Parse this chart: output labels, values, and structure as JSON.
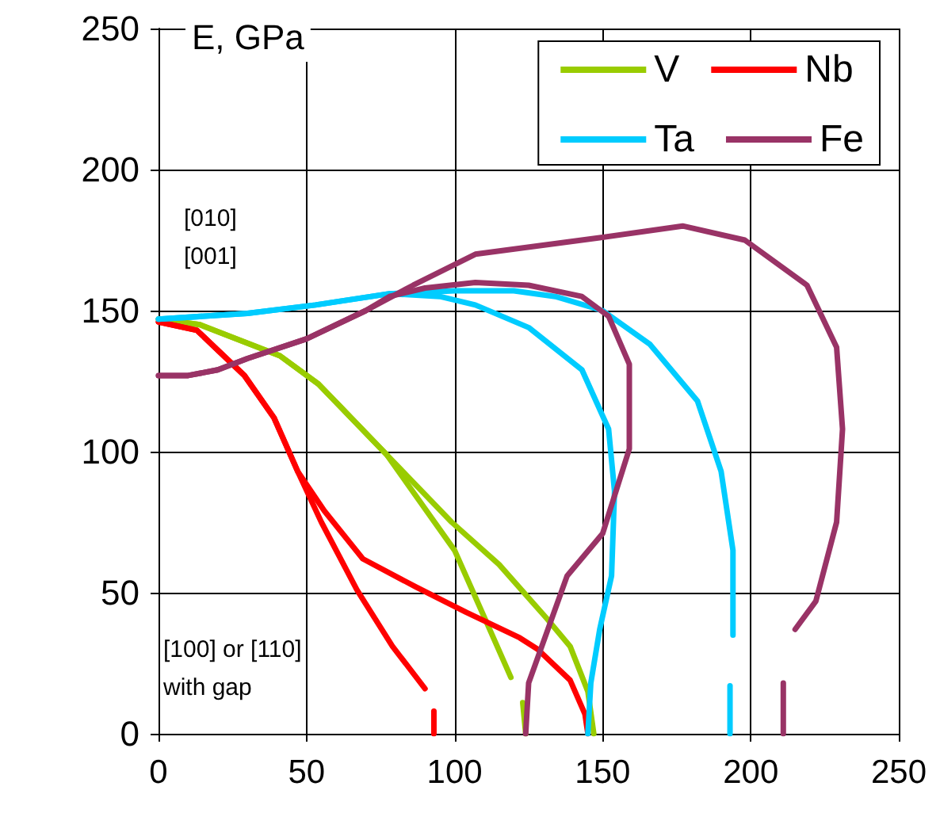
{
  "chart_data": {
    "type": "line",
    "annotations": [
      "E, GPa",
      "[010]\n[001]",
      "[100] or [110]\nwith gap"
    ],
    "xlim": [
      0,
      250
    ],
    "xticks": [
      0,
      50,
      100,
      150,
      200,
      250
    ],
    "ylim": [
      0,
      250
    ],
    "yticks": [
      0,
      50,
      100,
      150,
      200,
      250
    ],
    "grid": true,
    "legend": "top right",
    "series": [
      {
        "name": "V",
        "color": "#99cc00",
        "x": [
          0,
          14,
          41,
          54,
          77,
          100,
          111,
          119
        ],
        "values": [
          147,
          145,
          134,
          124,
          99,
          65,
          39,
          20
        ]
      },
      {
        "color": "#99cc00",
        "x": [
          0,
          14,
          41,
          54,
          77,
          99,
          115,
          131,
          139,
          145,
          147
        ],
        "values": [
          147,
          145,
          134,
          124,
          99,
          75,
          60,
          41,
          31,
          15,
          0
        ]
      },
      {
        "color": "#99cc00",
        "x": [
          123,
          124
        ],
        "values": [
          11,
          0
        ]
      },
      {
        "name": "Nb",
        "color": "#ff0000",
        "x": [
          0,
          13,
          29,
          39,
          47,
          55,
          67,
          79,
          90
        ],
        "values": [
          146,
          143,
          127,
          112,
          93,
          75,
          51,
          31,
          16
        ]
      },
      {
        "color": "#ff0000",
        "x": [
          0,
          13,
          29,
          39,
          47,
          56,
          69,
          87,
          104,
          122,
          128,
          139,
          144,
          145
        ],
        "values": [
          146,
          143,
          127,
          112,
          93,
          79,
          62,
          52,
          43,
          34,
          30,
          19,
          7,
          0
        ]
      },
      {
        "color": "#ff0000",
        "x": [
          93,
          93
        ],
        "values": [
          8,
          0
        ]
      },
      {
        "name": "Ta",
        "color": "#00ccff",
        "x": [
          0,
          30,
          53,
          78,
          100,
          120,
          134,
          150,
          166,
          182,
          190,
          194,
          194
        ],
        "values": [
          147,
          149,
          152,
          156,
          157,
          157,
          155,
          150,
          138,
          118,
          93,
          65,
          35
        ]
      },
      {
        "color": "#00ccff",
        "x": [
          0,
          30,
          53,
          78,
          95,
          107,
          125,
          143,
          152,
          154,
          153,
          149,
          146,
          145
        ],
        "values": [
          147,
          149,
          152,
          156,
          155,
          152,
          144,
          129,
          108,
          86,
          56,
          37,
          18,
          0
        ]
      },
      {
        "color": "#00ccff",
        "x": [
          193,
          193
        ],
        "values": [
          17,
          0
        ]
      },
      {
        "name": "Fe",
        "color": "#993366",
        "x": [
          0,
          10,
          20,
          30,
          50,
          70,
          86,
          107,
          150,
          177,
          198,
          219,
          229,
          231,
          229,
          222,
          215
        ],
        "values": [
          127,
          127,
          129,
          133,
          140,
          150,
          159,
          170,
          176,
          180,
          175,
          159,
          137,
          108,
          75,
          47,
          37
        ]
      },
      {
        "color": "#993366",
        "x": [
          0,
          10,
          20,
          30,
          50,
          70,
          78,
          90,
          107,
          125,
          143,
          152,
          159,
          159,
          150,
          138,
          125,
          124
        ],
        "values": [
          127,
          127,
          129,
          133,
          140,
          150,
          155,
          158,
          160,
          159,
          155,
          148,
          131,
          101,
          71,
          56,
          18,
          0
        ]
      },
      {
        "color": "#993366",
        "x": [
          211,
          211
        ],
        "values": [
          18,
          0
        ]
      }
    ]
  }
}
